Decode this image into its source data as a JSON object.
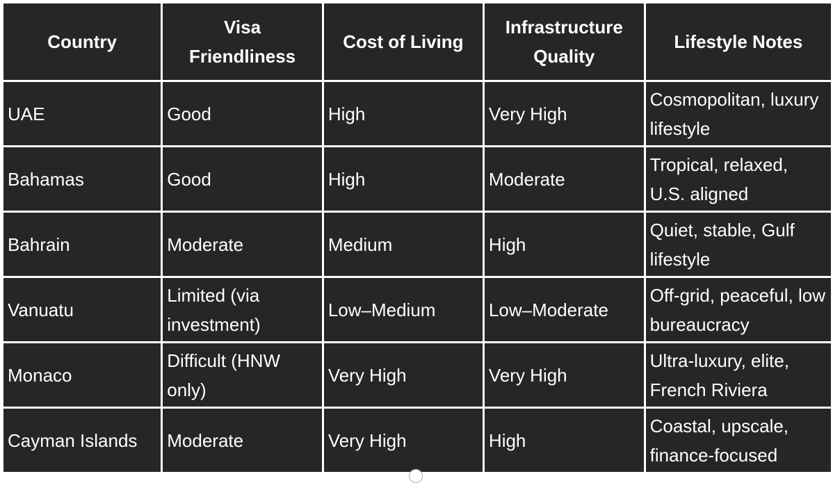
{
  "table": {
    "headers": [
      "Country",
      "Visa Friendliness",
      "Cost of Living",
      "Infrastructure Quality",
      "Lifestyle Notes"
    ],
    "rows": [
      [
        "UAE",
        "Good",
        "High",
        "Very High",
        "Cosmopolitan, luxury lifestyle"
      ],
      [
        "Bahamas",
        "Good",
        "High",
        "Moderate",
        "Tropical, relaxed, U.S. aligned"
      ],
      [
        "Bahrain",
        "Moderate",
        "Medium",
        "High",
        "Quiet, stable, Gulf lifestyle"
      ],
      [
        "Vanuatu",
        "Limited (via investment)",
        "Low–Medium",
        "Low–Moderate",
        "Off-grid, peaceful, low bureaucracy"
      ],
      [
        "Monaco",
        "Difficult (HNW only)",
        "Very High",
        "Very High",
        "Ultra-luxury, elite, French Riviera"
      ],
      [
        "Cayman Islands",
        "Moderate",
        "Very High",
        "High",
        "Coastal, upscale, finance-focused"
      ]
    ]
  }
}
